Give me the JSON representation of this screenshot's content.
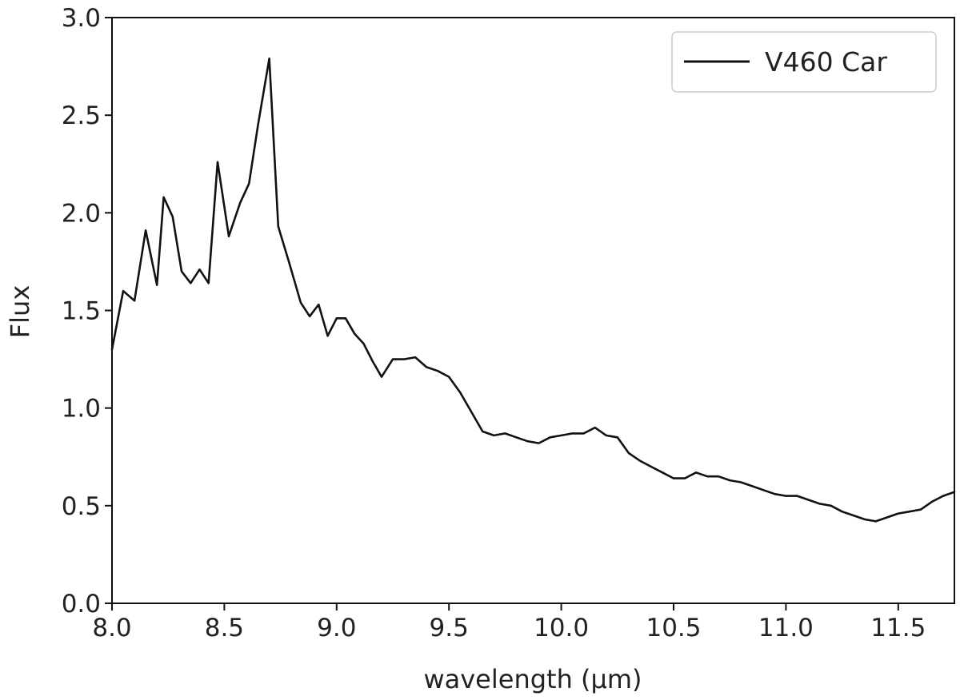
{
  "chart_data": {
    "type": "line",
    "title": "",
    "xlabel": "wavelength (μm)",
    "ylabel": "Flux",
    "xlim": [
      8.0,
      11.75
    ],
    "ylim": [
      0.0,
      3.0
    ],
    "xticks": [
      8.0,
      8.5,
      9.0,
      9.5,
      10.0,
      10.5,
      11.0,
      11.5
    ],
    "xtick_labels": [
      "8.0",
      "8.5",
      "9.0",
      "9.5",
      "10.0",
      "10.5",
      "11.0",
      "11.5"
    ],
    "yticks": [
      0.0,
      0.5,
      1.0,
      1.5,
      2.0,
      2.5,
      3.0
    ],
    "ytick_labels": [
      "0.0",
      "0.5",
      "1.0",
      "1.5",
      "2.0",
      "2.5",
      "3.0"
    ],
    "grid": false,
    "legend_position": "top-right",
    "series": [
      {
        "name": "V460 Car",
        "color": "#111111",
        "x": [
          8.0,
          8.05,
          8.1,
          8.15,
          8.2,
          8.23,
          8.27,
          8.31,
          8.35,
          8.39,
          8.43,
          8.47,
          8.52,
          8.57,
          8.61,
          8.65,
          8.7,
          8.74,
          8.79,
          8.84,
          8.88,
          8.92,
          8.96,
          9.0,
          9.04,
          9.08,
          9.12,
          9.16,
          9.2,
          9.25,
          9.3,
          9.35,
          9.4,
          9.45,
          9.5,
          9.55,
          9.6,
          9.65,
          9.7,
          9.75,
          9.8,
          9.85,
          9.9,
          9.95,
          10.0,
          10.05,
          10.1,
          10.15,
          10.2,
          10.25,
          10.3,
          10.35,
          10.4,
          10.45,
          10.5,
          10.55,
          10.6,
          10.65,
          10.7,
          10.75,
          10.8,
          10.85,
          10.9,
          10.95,
          11.0,
          11.05,
          11.1,
          11.15,
          11.2,
          11.25,
          11.3,
          11.35,
          11.4,
          11.45,
          11.5,
          11.55,
          11.6,
          11.65,
          11.7,
          11.75
        ],
        "y": [
          1.3,
          1.6,
          1.55,
          1.91,
          1.63,
          2.08,
          1.98,
          1.7,
          1.64,
          1.71,
          1.64,
          2.26,
          1.88,
          2.05,
          2.15,
          2.45,
          2.79,
          1.93,
          1.74,
          1.54,
          1.47,
          1.53,
          1.37,
          1.46,
          1.46,
          1.38,
          1.33,
          1.24,
          1.16,
          1.25,
          1.25,
          1.26,
          1.21,
          1.19,
          1.16,
          1.08,
          0.98,
          0.88,
          0.86,
          0.87,
          0.85,
          0.83,
          0.82,
          0.85,
          0.86,
          0.87,
          0.87,
          0.9,
          0.86,
          0.85,
          0.77,
          0.73,
          0.7,
          0.67,
          0.64,
          0.64,
          0.67,
          0.65,
          0.65,
          0.63,
          0.62,
          0.6,
          0.58,
          0.56,
          0.55,
          0.55,
          0.53,
          0.51,
          0.5,
          0.47,
          0.45,
          0.43,
          0.42,
          0.44,
          0.46,
          0.47,
          0.48,
          0.52,
          0.55,
          0.57
        ]
      }
    ]
  }
}
